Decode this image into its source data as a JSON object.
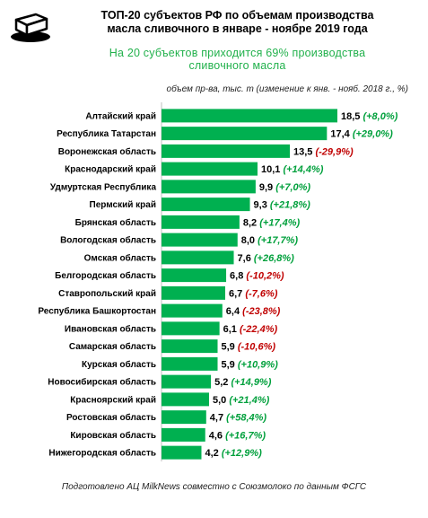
{
  "header": {
    "title_line1": "ТОП-20 субъектов РФ по объемам производства",
    "title_line2": "масла сливочного в январе - ноябре 2019 года",
    "subtitle_line1": "На 20 субъектов  приходится 69% производства",
    "subtitle_line2": "сливочного масла",
    "units": "объем пр-ва, тыс. т  (изменение к янв. - нояб. 2018 г., %)"
  },
  "footer": {
    "source": "Подготовлено АЦ MilkNews совместно с Союзмолоко по данным ФСГС"
  },
  "colors": {
    "bar": "#00b050",
    "positive": "#00a03c",
    "negative": "#c00000",
    "subtitle": "#22b14c"
  },
  "icons": {
    "logo": "butter-block-icon"
  },
  "chart_data": {
    "type": "bar",
    "orientation": "horizontal",
    "categories": [
      "Алтайский край",
      "Республика Татарстан",
      "Воронежская область",
      "Краснодарский край",
      "Удмуртская Республика",
      "Пермский край",
      "Брянская область",
      "Вологодская область",
      "Омская область",
      "Белгородская область",
      "Ставропольский край",
      "Республика Башкортостан",
      "Ивановская область",
      "Самарская область",
      "Курская область",
      "Новосибирская область",
      "Красноярский край",
      "Ростовская область",
      "Кировская область",
      "Нижегородская область"
    ],
    "series": [
      {
        "values": [
          18.5,
          17.4,
          13.5,
          10.1,
          9.9,
          9.3,
          8.2,
          8.0,
          7.6,
          6.8,
          6.7,
          6.4,
          6.1,
          5.9,
          5.9,
          5.2,
          5.0,
          4.7,
          4.6,
          4.2
        ]
      }
    ],
    "value_labels": [
      "18,5",
      "17,4",
      "13,5",
      "10,1",
      "9,9",
      "9,3",
      "8,2",
      "8,0",
      "7,6",
      "6,8",
      "6,7",
      "6,4",
      "6,1",
      "5,9",
      "5,9",
      "5,2",
      "5,0",
      "4,7",
      "4,6",
      "4,2"
    ],
    "change_labels": [
      "(+8,0%)",
      "(+29,0%)",
      "(-29,9%)",
      "(+14,4%)",
      "(+7,0%)",
      "(+21,8%)",
      "(+17,4%)",
      "(+17,7%)",
      "(+26,8%)",
      "(-10,2%)",
      "(-7,6%)",
      "(-23,8%)",
      "(-22,4%)",
      "(-10,6%)",
      "(+10,9%)",
      "(+14,9%)",
      "(+21,4%)",
      "(+58,4%)",
      "(+16,7%)",
      "(+12,9%)"
    ],
    "change_values": [
      8.0,
      29.0,
      -29.9,
      14.4,
      7.0,
      21.8,
      17.4,
      17.7,
      26.8,
      -10.2,
      -7.6,
      -23.8,
      -22.4,
      -10.6,
      10.9,
      14.9,
      21.4,
      58.4,
      16.7,
      12.9
    ],
    "xlim": [
      0,
      18.5
    ],
    "grid": false,
    "legend": "none"
  }
}
